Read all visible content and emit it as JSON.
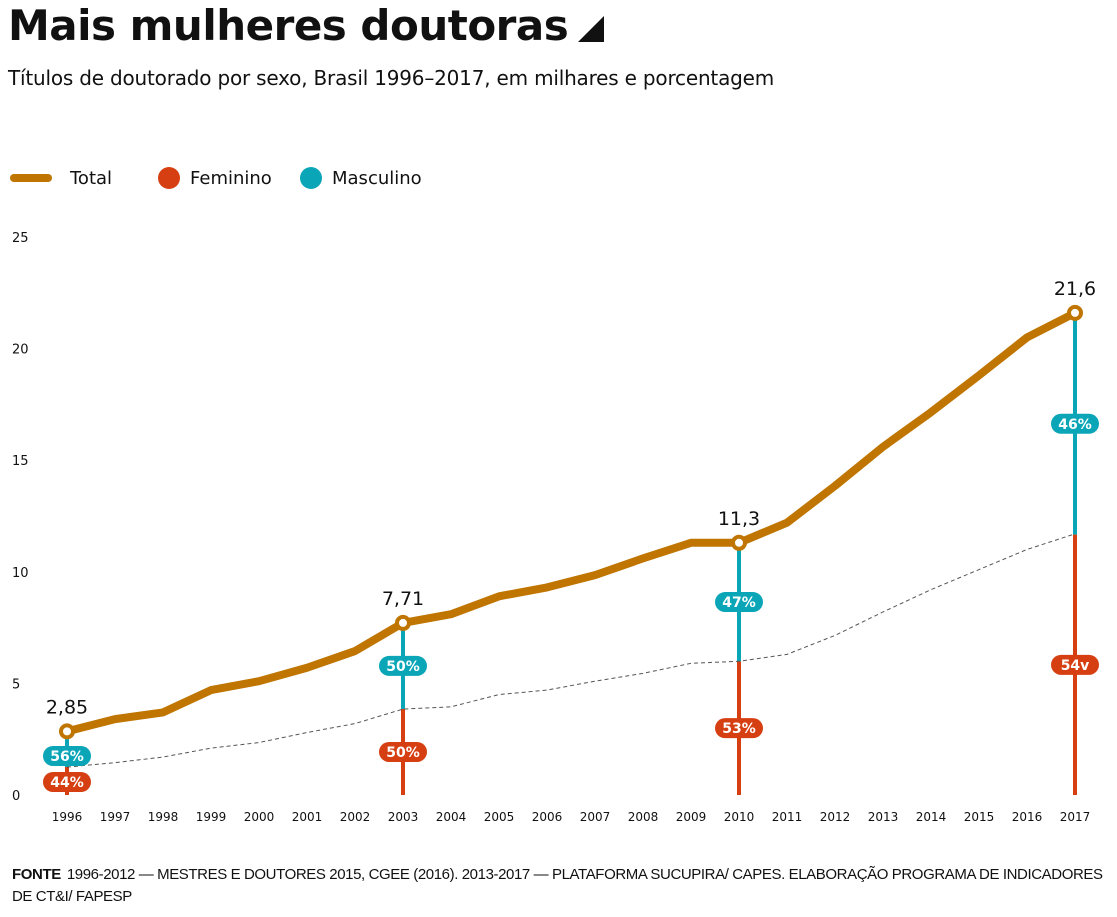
{
  "header": {
    "title": "Mais mulheres doutoras",
    "subtitle": "Títulos de doutorado por sexo, Brasil 1996–2017, em milhares e porcentagem"
  },
  "legend": {
    "total": "Total",
    "feminino": "Feminino",
    "masculino": "Masculino"
  },
  "colors": {
    "total": "#bf7500",
    "feminino": "#d63f12",
    "masculino": "#0aa6b8",
    "dashed": "#555555"
  },
  "source": {
    "label": "FONTE",
    "text": "1996-2012 — MESTRES E DOUTORES 2015, CGEE (2016). 2013-2017 — PLATAFORMA SUCUPIRA/ CAPES. ELABORAÇÃO PROGRAMA DE INDICADORES DE CT&I/ FAPESP"
  },
  "chart_data": {
    "type": "line",
    "title": "Mais mulheres doutoras",
    "subtitle": "Títulos de doutorado por sexo, Brasil 1996–2017, em milhares e porcentagem",
    "xlabel": "",
    "ylabel": "",
    "ylim": [
      0,
      25
    ],
    "yticks": [
      0,
      5,
      10,
      15,
      20,
      25
    ],
    "grid": false,
    "legend_position": "top-left",
    "x": [
      "1996",
      "1997",
      "1998",
      "1999",
      "2000",
      "2001",
      "2002",
      "2003",
      "2004",
      "2005",
      "2006",
      "2007",
      "2008",
      "2009",
      "2010",
      "2011",
      "2012",
      "2013",
      "2014",
      "2015",
      "2016",
      "2017"
    ],
    "series": [
      {
        "name": "Total",
        "style": "solid",
        "values": [
          2.85,
          3.4,
          3.7,
          4.7,
          5.1,
          5.7,
          6.45,
          7.71,
          8.1,
          8.9,
          9.3,
          9.85,
          10.6,
          11.3,
          11.3,
          12.2,
          13.85,
          15.6,
          17.15,
          18.8,
          20.5,
          21.6
        ]
      },
      {
        "name": "Feminino",
        "style": "dashed",
        "values": [
          1.25,
          1.45,
          1.7,
          2.1,
          2.35,
          2.8,
          3.2,
          3.85,
          3.95,
          4.5,
          4.7,
          5.1,
          5.45,
          5.9,
          5.99,
          6.3,
          7.15,
          8.2,
          9.2,
          10.1,
          11.0,
          11.7
        ]
      }
    ],
    "annotations": [
      {
        "year": "1996",
        "total_label": "2,85",
        "total": 2.85,
        "feminino_pct": "44%",
        "masculino_pct": "56%",
        "feminino_share": 0.44
      },
      {
        "year": "2003",
        "total_label": "7,71",
        "total": 7.71,
        "feminino_pct": "50%",
        "masculino_pct": "50%",
        "feminino_share": 0.5
      },
      {
        "year": "2010",
        "total_label": "11,3",
        "total": 11.3,
        "feminino_pct": "53%",
        "masculino_pct": "47%",
        "feminino_share": 0.53
      },
      {
        "year": "2017",
        "total_label": "21,6",
        "total": 21.6,
        "feminino_pct": "54v",
        "masculino_pct": "46%",
        "feminino_share": 0.54
      }
    ]
  }
}
